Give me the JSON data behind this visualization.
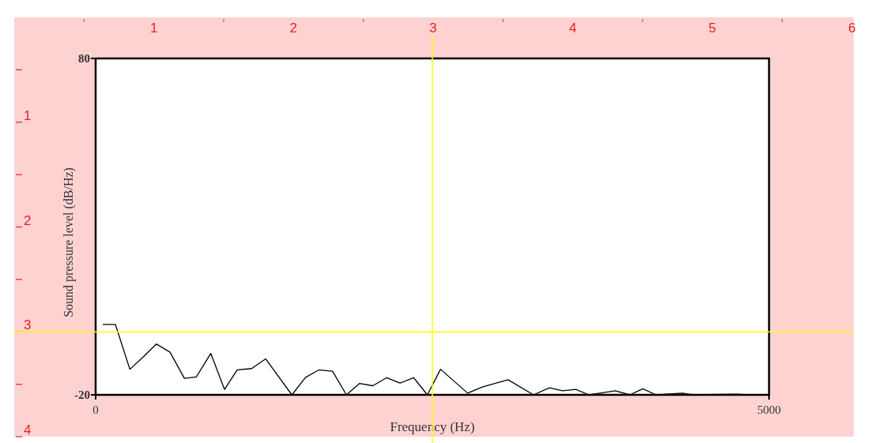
{
  "chart_data": {
    "type": "line",
    "xlabel": "Frequency (Hz)",
    "ylabel": "Sound pressure level (dB/Hz)",
    "x": [
      53,
      147,
      254,
      352,
      450,
      552,
      659,
      747,
      855,
      957,
      1051,
      1158,
      1262,
      1457,
      1559,
      1657,
      1759,
      1862,
      1960,
      2058,
      2162,
      2260,
      2361,
      2463,
      2561,
      2762,
      2870,
      3062,
      3251,
      3369,
      3467,
      3565,
      3663,
      3858,
      3966,
      4063,
      4161,
      4357,
      4435,
      4767,
      4830
    ],
    "series": [
      {
        "color": "#000000",
        "values": [
          0.9,
          0.9,
          -12.4,
          -8.8,
          -4.9,
          -7.3,
          -15.1,
          -14.7,
          -7.7,
          -18.4,
          -12.6,
          -12.2,
          -9.3,
          -20,
          -14.8,
          -12.6,
          -13,
          -20,
          -16.6,
          -17.3,
          -14.9,
          -16.5,
          -14.9,
          -20,
          -12.4,
          -19.5,
          -17.7,
          -15.5,
          -20,
          -17.9,
          -18.8,
          -18.4,
          -20,
          -18.8,
          -20,
          -18.2,
          -20,
          -19.5,
          -20,
          -19.8,
          -20
        ]
      }
    ],
    "xlim": [
      0,
      5000
    ],
    "xticks": [
      0,
      5000
    ],
    "ylim": [
      -20,
      80
    ],
    "yticks": [
      80,
      -20
    ],
    "x2lim": [
      0,
      6
    ],
    "x2ticks": [
      {
        "value": 0.5,
        "label": null
      },
      1,
      {
        "value": 1.5,
        "label": null
      },
      2,
      {
        "value": 2.5,
        "label": null
      },
      3,
      {
        "value": 3.5,
        "label": null
      },
      4,
      {
        "value": 4.5,
        "label": null
      },
      5,
      {
        "value": 5.5,
        "label": null
      },
      6
    ],
    "y2lim": [
      4,
      0
    ],
    "y2ticks": [
      {
        "value": 0.5,
        "label": null
      },
      1,
      {
        "value": 1.5,
        "label": null
      },
      2,
      {
        "value": 2.5,
        "label": null
      },
      3,
      {
        "value": 3.5,
        "label": null
      },
      4
    ],
    "ref_lines": [
      {
        "axis": "x",
        "value": 2500,
        "color": "#ffff00"
      },
      {
        "axis": "y2",
        "value": 3,
        "color": "#ffff00"
      }
    ],
    "marker": "none",
    "line_style": "solid"
  }
}
